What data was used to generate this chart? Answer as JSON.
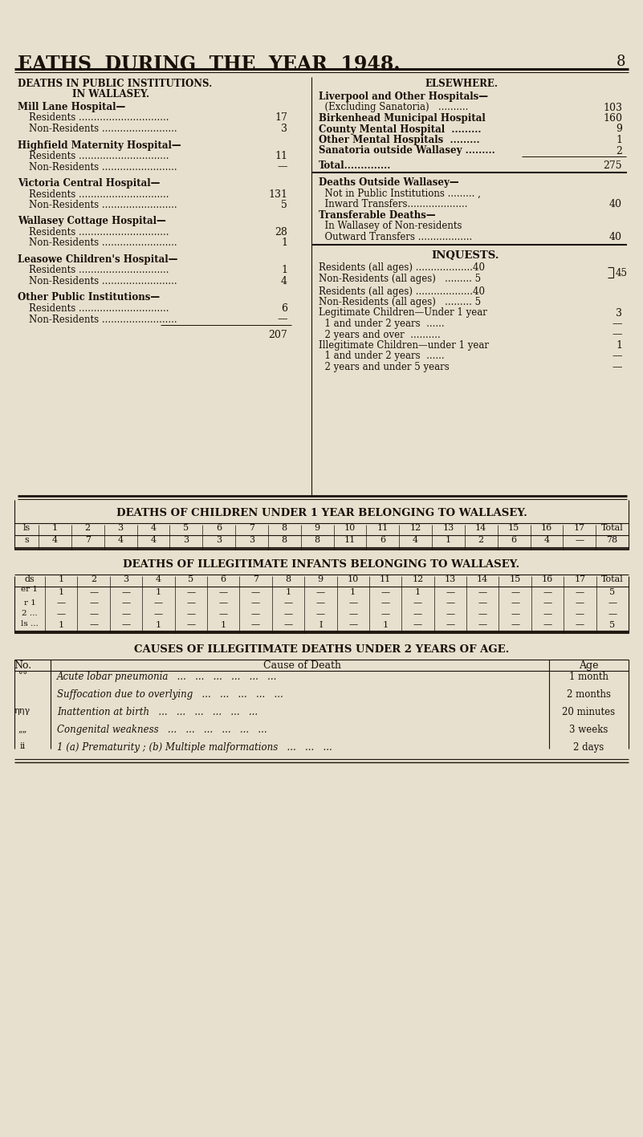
{
  "bg_color": "#e8e0ce",
  "text_color": "#1a100a",
  "title": "EATHS  DURING  THE  YEAR  1948.",
  "page_num": "8",
  "left_col_title1": "DEATHS IN PUBLIC INSTITUTIONS.",
  "left_col_title2": "IN WALLASEY.",
  "right_col_title": "ELSEWHERE.",
  "left_institutions": [
    {
      "name": "Mill Lane Hospital—",
      "bold": true,
      "indent": 0,
      "value": null
    },
    {
      "name": "Residents ..............................",
      "bold": false,
      "indent": 1,
      "value": "17"
    },
    {
      "name": "Non-Residents .........................",
      "bold": false,
      "indent": 1,
      "value": "3"
    },
    {
      "name": null
    },
    {
      "name": "Highfield Maternity Hospital—",
      "bold": true,
      "indent": 0,
      "value": null
    },
    {
      "name": "Residents ..............................",
      "bold": false,
      "indent": 1,
      "value": "11"
    },
    {
      "name": "Non-Residents .........................",
      "bold": false,
      "indent": 1,
      "value": "—"
    },
    {
      "name": null
    },
    {
      "name": "Victoria Central Hospital—",
      "bold": true,
      "indent": 0,
      "value": null
    },
    {
      "name": "Residents ..............................",
      "bold": false,
      "indent": 1,
      "value": "131"
    },
    {
      "name": "Non-Residents .........................",
      "bold": false,
      "indent": 1,
      "value": "5"
    },
    {
      "name": null
    },
    {
      "name": "Wallasey Cottage Hospital—",
      "bold": true,
      "indent": 0,
      "value": null
    },
    {
      "name": "Residents ..............................",
      "bold": false,
      "indent": 1,
      "value": "28"
    },
    {
      "name": "Non-Residents .........................",
      "bold": false,
      "indent": 1,
      "value": "1"
    },
    {
      "name": null
    },
    {
      "name": "Leasowe Children's Hospital—",
      "bold": true,
      "indent": 0,
      "value": null
    },
    {
      "name": "Residents ..............................",
      "bold": false,
      "indent": 1,
      "value": "1"
    },
    {
      "name": "Non-Residents .........................",
      "bold": false,
      "indent": 1,
      "value": "4"
    },
    {
      "name": null
    },
    {
      "name": "Other Public Institutions—",
      "bold": true,
      "indent": 0,
      "value": null
    },
    {
      "name": "Residents ..............................",
      "bold": false,
      "indent": 1,
      "value": "6"
    },
    {
      "name": "Non-Residents .........................",
      "bold": false,
      "indent": 1,
      "value": "—"
    },
    {
      "name": "TOTAL_LINE",
      "value": "207"
    }
  ],
  "right_elsewhere": [
    {
      "name": "Liverpool and Other Hospitals—",
      "bold": true,
      "value": null
    },
    {
      "name": "  (Excluding Sanatoria)   ..........",
      "bold": false,
      "value": "103"
    },
    {
      "name": "Birkenhead Municipal Hospital",
      "bold": true,
      "value": "160"
    },
    {
      "name": "County Mental Hospital  .........",
      "bold": true,
      "value": "9"
    },
    {
      "name": "Other Mental Hospitals  .........",
      "bold": true,
      "value": "1"
    },
    {
      "name": "Sanatoria outside Wallasey .........",
      "bold": true,
      "value": "2"
    },
    {
      "name": "RULE"
    },
    {
      "name": "Total..............",
      "bold": true,
      "value": "275"
    }
  ],
  "right_outside": [
    {
      "name": "Deaths Outside Wallasey—",
      "bold": true,
      "value": null
    },
    {
      "name": "  Not in Public Institutions ......... ,",
      "bold": false,
      "value": null
    },
    {
      "name": "  Inward Transfers....................",
      "bold": false,
      "value": "40"
    },
    {
      "name": "Transferable Deaths—",
      "bold": true,
      "value": null
    },
    {
      "name": "  In Wallasey of Non-residents",
      "bold": false,
      "value": null
    },
    {
      "name": "  Outward Transfers ..................",
      "bold": false,
      "value": "40"
    }
  ],
  "inquest_lines": [
    {
      "name": "Residents (all ages) ...................40",
      "brace_top": true
    },
    {
      "name": "Non-Residents (all ages)   ......... 5",
      "brace_bot": true,
      "brace_val": "45"
    },
    {
      "name": "Legitimate Children—Under 1 year",
      "value": "3"
    },
    {
      "name": "  1 and under 2 years  ......",
      "value": "—"
    },
    {
      "name": "  2 years and over  ..........",
      "value": "—"
    },
    {
      "name": "Illegitimate Children—under 1 year",
      "value": "1"
    },
    {
      "name": "  1 and under 2 years  ......",
      "value": "—"
    },
    {
      "name": "  2 years and under 5 years",
      "value": "—"
    }
  ],
  "children_table_title": "DEATHS OF CHILDREN UNDER 1 YEAR BELONGING TO WALLASEY.",
  "children_header_left": "ls",
  "children_header_nums": [
    "1",
    "2",
    "3",
    "4",
    "5",
    "6",
    "7",
    "8",
    "9",
    "10",
    "11",
    "12",
    "13",
    "14",
    "15",
    "16",
    "17",
    "Total"
  ],
  "children_row_label": "s",
  "children_row_data": [
    "4",
    "7",
    "4",
    "4",
    "3",
    "3",
    "3",
    "8",
    "8",
    "11",
    "6",
    "4",
    "1",
    "2",
    "6",
    "4",
    "—",
    "78"
  ],
  "illeg_table_title": "DEATHS OF ILLEGITIMATE INFANTS BELONGING TO WALLASEY.",
  "illeg_header_col1": "ds",
  "illeg_header_nums": [
    "1",
    "2",
    "3",
    "4",
    "5",
    "6",
    "7",
    "8",
    "9",
    "10",
    "11",
    "12",
    "13",
    "14",
    "15",
    "16",
    "17",
    "Total"
  ],
  "illeg_col1_labels": [
    "er 1",
    "r 1",
    "2 ...",
    "ls ..."
  ],
  "illeg_rows": [
    [
      "1",
      "—",
      "—",
      "1",
      "—",
      "—",
      "—",
      "1",
      "—",
      "1",
      "—",
      "1",
      "—",
      "—",
      "—",
      "—",
      "—",
      "5"
    ],
    [
      "—",
      "—",
      "—",
      "—",
      "—",
      "—",
      "—",
      "—",
      "—",
      "—",
      "—",
      "—",
      "—",
      "—",
      "—",
      "—",
      "—",
      "—"
    ],
    [
      "—",
      "—",
      "—",
      "—",
      "—",
      "—",
      "—",
      "—",
      "—",
      "—",
      "—",
      "—",
      "—",
      "—",
      "—",
      "—",
      "—",
      "—"
    ],
    [
      "1",
      "—",
      "—",
      "1",
      "—",
      "1",
      "—",
      "—",
      "I",
      "—",
      "1",
      "—",
      "—",
      "—",
      "—",
      "—",
      "—",
      "5"
    ]
  ],
  "causes_title": "CAUSES OF ILLEGITIMATE DEATHS UNDER 2 YEARS OF AGE.",
  "causes_header": [
    "No.",
    "Cause of Death",
    "Age"
  ],
  "causes_rows": [
    {
      "no": "°°",
      "cause": "Acute lobar pneumonia   ...   ...   ...   ...   ...   ...",
      "age": "1 month"
    },
    {
      "no": "",
      "cause": "Suffocation due to overlying   ...   ...   ...   ...   ...",
      "age": "2 months"
    },
    {
      "no": "ηηγ",
      "cause": "Inattention at birth   ...   ...   ...   ...   ...   ...",
      "age": "20 minutes"
    },
    {
      "no": "„„",
      "cause": "Congenital weakness   ...   ...   ...   ...   ...   ...",
      "age": "3 weeks"
    },
    {
      "no": "ii",
      "cause": "1 (a) Prematurity ; (b) Multiple malformations   ...   ...   ...",
      "age": "2 days"
    }
  ]
}
